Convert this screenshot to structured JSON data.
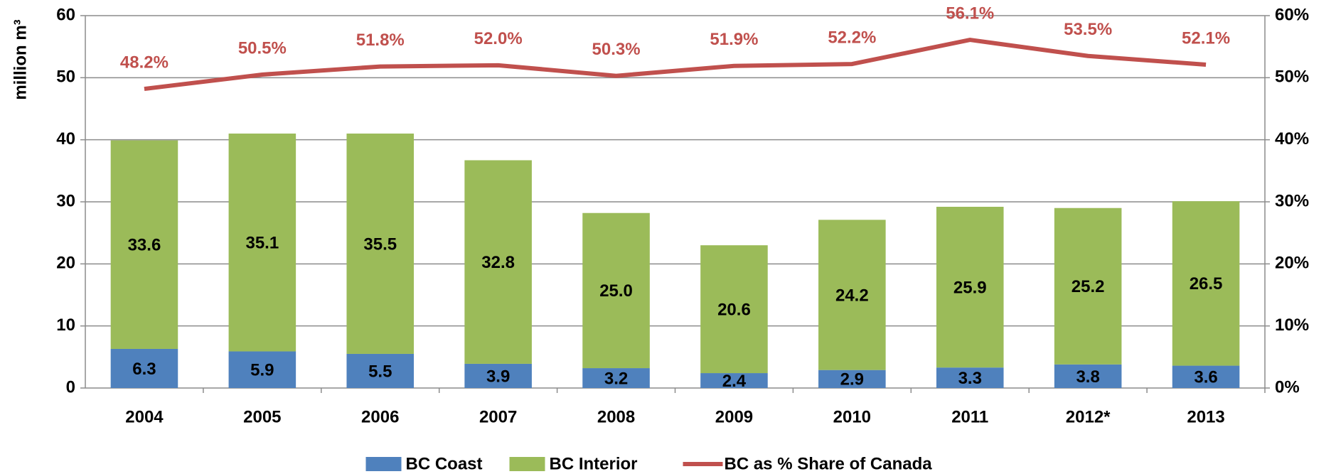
{
  "chart_data": {
    "type": "bar",
    "stacked": true,
    "grid": true,
    "legend": "bottom",
    "y_label": "million m³",
    "categories": [
      "2004",
      "2005",
      "2006",
      "2007",
      "2008",
      "2009",
      "2010",
      "2011",
      "2012*",
      "2013"
    ],
    "series": [
      {
        "name": "BC Coast",
        "color": "#4f81bd",
        "values": [
          6.3,
          5.9,
          5.5,
          3.9,
          3.2,
          2.4,
          2.9,
          3.3,
          3.8,
          3.6
        ],
        "value_labels": [
          "6.3",
          "5.9",
          "5.5",
          "3.9",
          "3.2",
          "2.4",
          "2.9",
          "3.3",
          "3.8",
          "3.6"
        ]
      },
      {
        "name": "BC Interior",
        "color": "#9bbb59",
        "values": [
          33.6,
          35.1,
          35.5,
          32.8,
          25,
          20.6,
          24.2,
          25.9,
          25.2,
          26.5
        ],
        "value_labels": [
          "33.6",
          "35.1",
          "35.5",
          "32.8",
          "25.0",
          "20.6",
          "24.2",
          "25.9",
          "25.2",
          "26.5"
        ]
      },
      {
        "name": "BC as % Share of Canada",
        "type": "line",
        "axis": "y2",
        "color": "#c0504d",
        "values": [
          48.2,
          50.5,
          51.8,
          52.0,
          50.3,
          51.9,
          52.2,
          56.1,
          53.5,
          52.1
        ],
        "value_labels": [
          "48.2%",
          "50.5%",
          "51.8%",
          "52.0%",
          "50.3%",
          "51.9%",
          "52.2%",
          "56.1%",
          "53.5%",
          "52.1%"
        ]
      }
    ],
    "ylim": [
      0,
      60
    ],
    "yticks": [
      0,
      10,
      20,
      30,
      40,
      50,
      60
    ],
    "y2lim": [
      0,
      60
    ],
    "y2ticks": [
      {
        "value": 0,
        "label": "0%"
      },
      {
        "value": 10,
        "label": "10%"
      },
      {
        "value": 20,
        "label": "20%"
      },
      {
        "value": 30,
        "label": "30%"
      },
      {
        "value": 40,
        "label": "40%"
      },
      {
        "value": 50,
        "label": "50%"
      },
      {
        "value": 60,
        "label": "60%"
      }
    ]
  }
}
